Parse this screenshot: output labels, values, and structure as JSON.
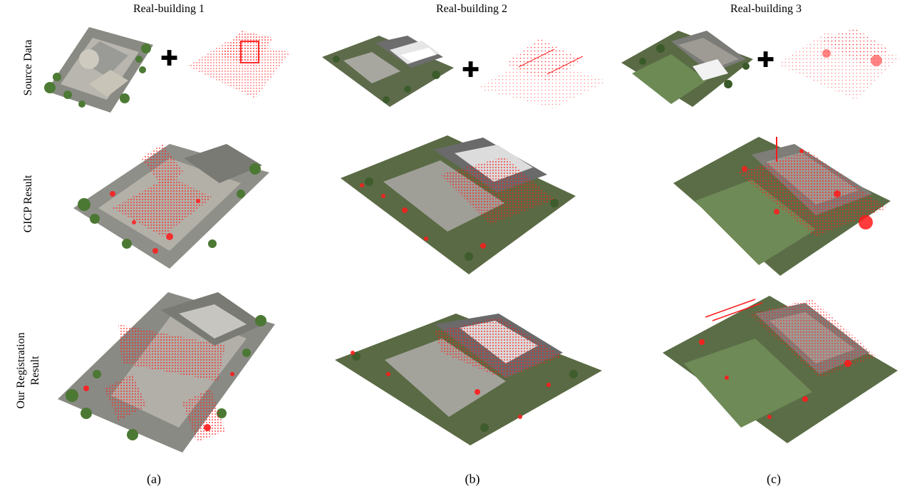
{
  "columns": [
    {
      "title": "Real-building 1",
      "label": "(a)"
    },
    {
      "title": "Real-building 2",
      "label": "(b)"
    },
    {
      "title": "Real-building 3",
      "label": "(c)"
    }
  ],
  "rows": [
    {
      "label": "Source Data"
    },
    {
      "label": "GICP Result"
    },
    {
      "label_line1": "Our Registration",
      "label_line2": "Result"
    }
  ],
  "plus_symbol": "✚",
  "colors": {
    "point_red": "#ff1a1a",
    "ground_green": "#5a6b42",
    "roof_gray": "#7c7c7c",
    "pavement": "#a8a8a0",
    "vegetation": "#3f6a2e"
  }
}
